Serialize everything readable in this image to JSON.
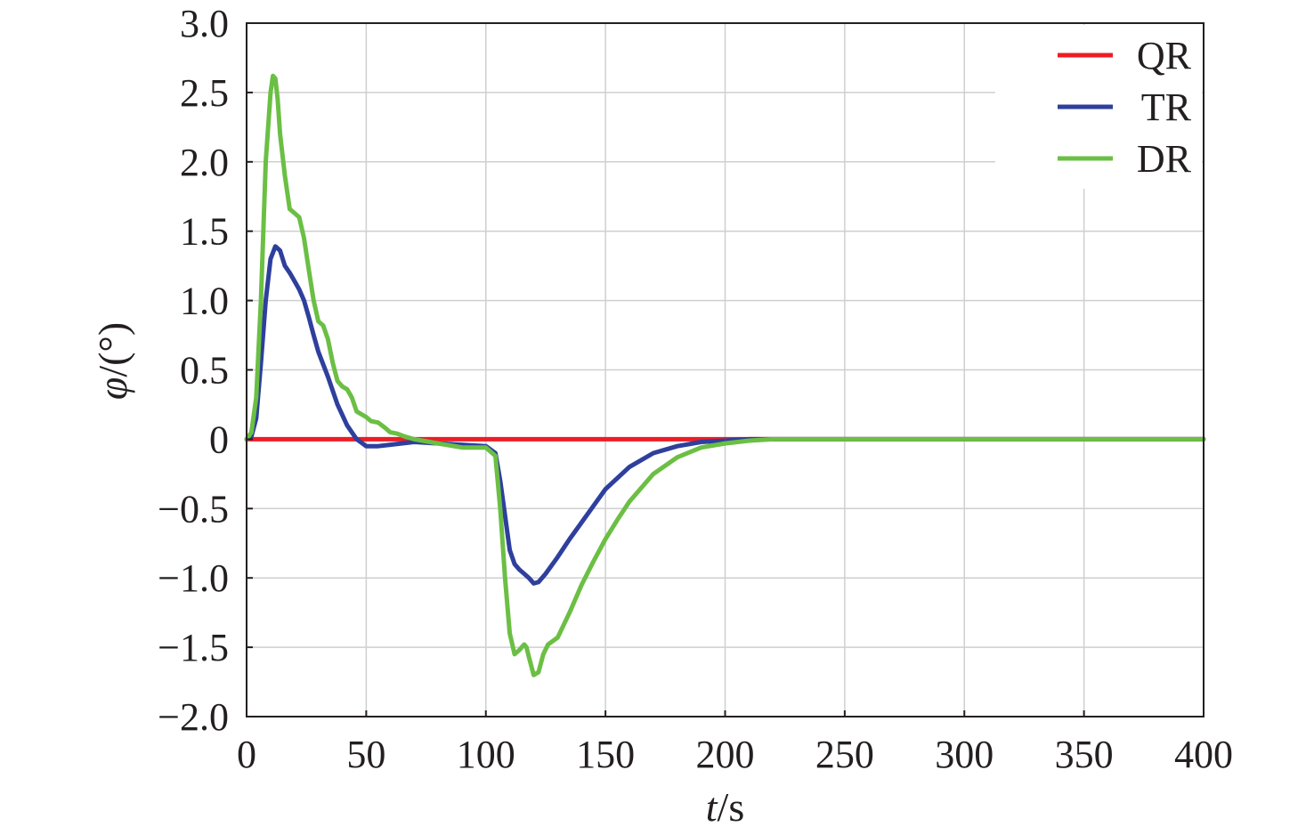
{
  "chart_data": {
    "type": "line",
    "title": "",
    "xlabel": {
      "var": "t",
      "unit": "/s"
    },
    "ylabel": {
      "var": "φ",
      "unit": "/(°)"
    },
    "xlim": [
      0,
      400
    ],
    "ylim": [
      -2.0,
      3.0
    ],
    "xticks": [
      0,
      50,
      100,
      150,
      200,
      250,
      300,
      350,
      400
    ],
    "xtick_labels": [
      "0",
      "50",
      "100",
      "150",
      "200",
      "250",
      "300",
      "350",
      "400"
    ],
    "yticks": [
      3.0,
      2.5,
      2.0,
      1.5,
      1.0,
      0.5,
      0,
      -0.5,
      -1.0,
      -1.5,
      -2.0
    ],
    "ytick_labels": [
      "3.0",
      "2.5",
      "2.0",
      "1.5",
      "1.0",
      "0.5",
      "0",
      "−0.5",
      "−1.0",
      "−1.5",
      "−2.0"
    ],
    "grid": true,
    "legend_position": "top-right",
    "series": [
      {
        "name": "QR",
        "color": "#ed1c24",
        "x": [
          0,
          400
        ],
        "y": [
          0,
          0
        ]
      },
      {
        "name": "TR",
        "color": "#2e3f9d",
        "x": [
          0,
          2,
          4,
          6,
          8,
          10,
          12,
          14,
          16,
          18,
          20,
          22,
          24,
          26,
          28,
          30,
          34,
          38,
          42,
          46,
          50,
          55,
          60,
          70,
          80,
          90,
          100,
          104,
          106,
          108,
          110,
          112,
          114,
          116,
          118,
          120,
          122,
          125,
          130,
          135,
          140,
          145,
          150,
          160,
          170,
          180,
          190,
          200,
          210,
          220,
          230,
          250,
          300,
          350,
          400
        ],
        "y": [
          0,
          0.02,
          0.15,
          0.55,
          1.0,
          1.3,
          1.39,
          1.36,
          1.25,
          1.2,
          1.14,
          1.08,
          1.0,
          0.88,
          0.75,
          0.63,
          0.45,
          0.25,
          0.1,
          0.0,
          -0.05,
          -0.05,
          -0.04,
          -0.02,
          -0.03,
          -0.04,
          -0.05,
          -0.1,
          -0.3,
          -0.55,
          -0.8,
          -0.9,
          -0.94,
          -0.97,
          -1.0,
          -1.04,
          -1.03,
          -0.97,
          -0.85,
          -0.72,
          -0.6,
          -0.48,
          -0.36,
          -0.2,
          -0.1,
          -0.05,
          -0.02,
          -0.01,
          0.0,
          0.0,
          0.0,
          0.0,
          0.0,
          0.0,
          0.0
        ]
      },
      {
        "name": "DR",
        "color": "#6bbf44",
        "x": [
          0,
          2,
          4,
          6,
          8,
          10,
          11,
          12,
          13,
          14,
          16,
          18,
          20,
          22,
          24,
          26,
          28,
          30,
          32,
          34,
          36,
          38,
          40,
          42,
          44,
          46,
          48,
          50,
          52,
          55,
          58,
          60,
          63,
          66,
          70,
          80,
          90,
          100,
          104,
          106,
          108,
          110,
          112,
          114,
          116,
          117,
          118,
          120,
          122,
          124,
          126,
          130,
          135,
          140,
          145,
          150,
          155,
          160,
          170,
          180,
          190,
          200,
          210,
          220,
          230,
          250,
          300,
          350,
          400
        ],
        "y": [
          0,
          0.05,
          0.3,
          1.0,
          2.0,
          2.5,
          2.62,
          2.6,
          2.45,
          2.2,
          1.9,
          1.66,
          1.63,
          1.6,
          1.45,
          1.22,
          1.0,
          0.85,
          0.82,
          0.72,
          0.55,
          0.42,
          0.38,
          0.36,
          0.3,
          0.2,
          0.18,
          0.16,
          0.13,
          0.12,
          0.08,
          0.05,
          0.04,
          0.02,
          0.0,
          -0.03,
          -0.06,
          -0.06,
          -0.12,
          -0.5,
          -1.0,
          -1.4,
          -1.55,
          -1.52,
          -1.48,
          -1.5,
          -1.57,
          -1.7,
          -1.68,
          -1.55,
          -1.48,
          -1.43,
          -1.25,
          -1.05,
          -0.88,
          -0.72,
          -0.58,
          -0.45,
          -0.25,
          -0.13,
          -0.06,
          -0.03,
          -0.01,
          0.0,
          0.0,
          0.0,
          0.0,
          0.0,
          0.0
        ]
      }
    ]
  }
}
